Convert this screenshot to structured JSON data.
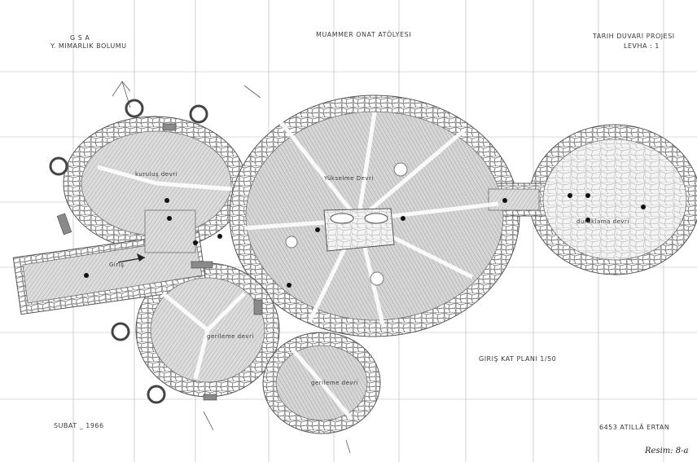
{
  "header": {
    "school_line1": "G  S  A",
    "school_line2": "Y. MIMARLIK  BOLUMU",
    "studio": "MUAMMER  ONAT  ATÖLYESI",
    "project_line1": "TARIH  DUVARI  PROJESI",
    "project_line2": "LEVHA : 1"
  },
  "rooms": {
    "kurulus": "kuruluş  devri",
    "yukselme": "Yükselme  Devri",
    "duraklama": "duraklama  devri",
    "giris": "Giriş",
    "gerileme1": "gerileme  devri",
    "gerileme2": "gerileme  devri"
  },
  "plan_title": "GIRIŞ  KAT  PLANI      1/50",
  "footer": {
    "date": "SUBAT _ 1966",
    "author": "6453  ATILLÂ  ERTAN",
    "caption": "Resim: 8-a"
  },
  "colors": {
    "line": "#6f6f6f",
    "hatch": "#9a9a9a",
    "fill": "#d9d9d9",
    "stone": "#ffffff"
  }
}
